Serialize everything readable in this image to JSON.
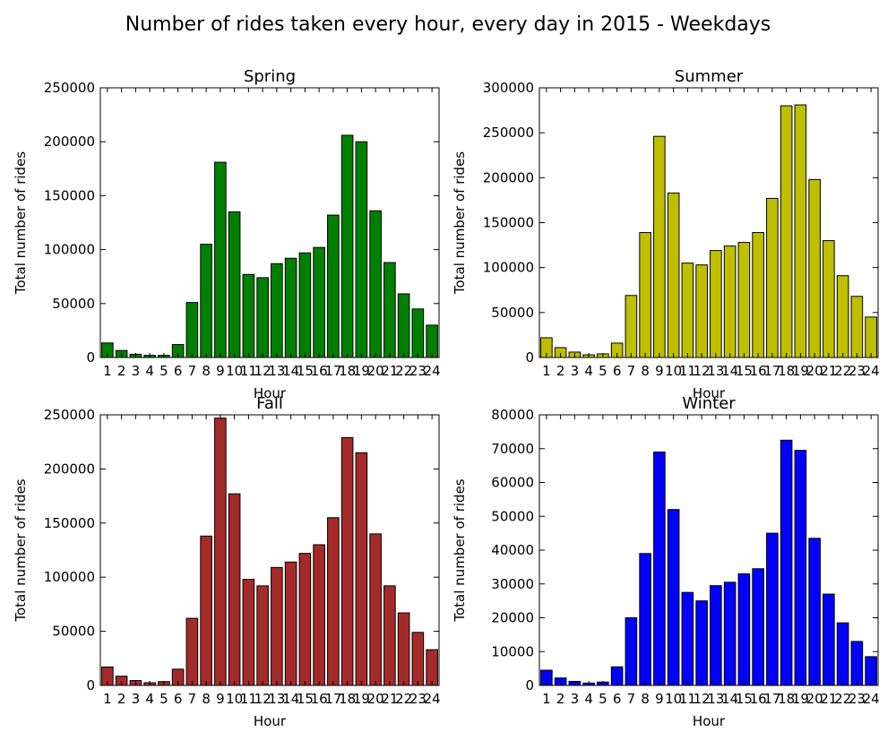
{
  "suptitle": "Number of rides taken every hour, every day in 2015 - Weekdays",
  "chart_data": [
    {
      "type": "bar",
      "title": "Spring",
      "xlabel": "Hour",
      "ylabel": "Total number of rides",
      "color": "#008000",
      "categories": [
        "1",
        "2",
        "3",
        "4",
        "5",
        "6",
        "7",
        "8",
        "9",
        "10",
        "11",
        "12",
        "13",
        "14",
        "15",
        "16",
        "17",
        "18",
        "19",
        "20",
        "21",
        "22",
        "23",
        "24"
      ],
      "values": [
        13500,
        6500,
        3000,
        2000,
        2000,
        12000,
        51000,
        105000,
        181000,
        135000,
        77000,
        74000,
        87000,
        92000,
        97000,
        102000,
        132000,
        206000,
        200000,
        136000,
        88000,
        59000,
        45000,
        30000
      ],
      "ylim": [
        0,
        250000
      ],
      "yticks": [
        0,
        50000,
        100000,
        150000,
        200000,
        250000
      ]
    },
    {
      "type": "bar",
      "title": "Summer",
      "xlabel": "Hour",
      "ylabel": "Total number of rides",
      "color": "#bfbf00",
      "categories": [
        "1",
        "2",
        "3",
        "4",
        "5",
        "6",
        "7",
        "8",
        "9",
        "10",
        "11",
        "12",
        "13",
        "14",
        "15",
        "16",
        "17",
        "18",
        "19",
        "20",
        "21",
        "22",
        "23",
        "24"
      ],
      "values": [
        22000,
        11000,
        6000,
        3000,
        4000,
        16000,
        69000,
        139000,
        246000,
        183000,
        105000,
        103000,
        119000,
        124000,
        128000,
        139000,
        177000,
        280000,
        281000,
        198000,
        130000,
        91000,
        68000,
        45000
      ],
      "ylim": [
        0,
        300000
      ],
      "yticks": [
        0,
        50000,
        100000,
        150000,
        200000,
        250000,
        300000
      ]
    },
    {
      "type": "bar",
      "title": "Fall",
      "xlabel": "Hour",
      "ylabel": "Total number of rides",
      "color": "#a52a2a",
      "categories": [
        "1",
        "2",
        "3",
        "4",
        "5",
        "6",
        "7",
        "8",
        "9",
        "10",
        "11",
        "12",
        "13",
        "14",
        "15",
        "16",
        "17",
        "18",
        "19",
        "20",
        "21",
        "22",
        "23",
        "24"
      ],
      "values": [
        17000,
        8500,
        4500,
        2500,
        3500,
        15000,
        62000,
        138000,
        247000,
        177000,
        98000,
        92000,
        109000,
        114000,
        122000,
        130000,
        155000,
        229000,
        215000,
        140000,
        92000,
        67000,
        49000,
        33000
      ],
      "ylim": [
        0,
        250000
      ],
      "yticks": [
        0,
        50000,
        100000,
        150000,
        200000,
        250000
      ]
    },
    {
      "type": "bar",
      "title": "Winter",
      "xlabel": "Hour",
      "ylabel": "Total number of rides",
      "color": "#0000ff",
      "categories": [
        "1",
        "2",
        "3",
        "4",
        "5",
        "6",
        "7",
        "8",
        "9",
        "10",
        "11",
        "12",
        "13",
        "14",
        "15",
        "16",
        "17",
        "18",
        "19",
        "20",
        "21",
        "22",
        "23",
        "24"
      ],
      "values": [
        4500,
        2200,
        1200,
        700,
        1000,
        5500,
        20000,
        39000,
        69000,
        52000,
        27500,
        25000,
        29500,
        30500,
        33000,
        34500,
        45000,
        72500,
        69500,
        43500,
        27000,
        18500,
        13000,
        8500
      ],
      "ylim": [
        0,
        80000
      ],
      "yticks": [
        0,
        10000,
        20000,
        30000,
        40000,
        50000,
        60000,
        70000,
        80000
      ]
    }
  ]
}
